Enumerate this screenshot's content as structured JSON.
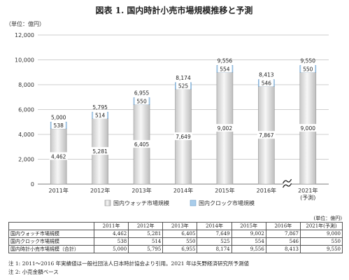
{
  "chart_data": {
    "type": "bar",
    "title": "図表 1. 国内時計小売市場規模推移と予測",
    "unit_label": "（単位：億円）",
    "categories": [
      "2011年",
      "2012年",
      "2013年",
      "2014年",
      "2015年",
      "2016年",
      "2021年\n(予測)"
    ],
    "series": [
      {
        "name": "国内ウォッチ市場規模",
        "values": [
          4462,
          5281,
          6405,
          7649,
          9002,
          7867,
          9000
        ],
        "color": "#e0e0e0"
      },
      {
        "name": "国内クロック市場規模",
        "values": [
          538,
          514,
          550,
          525,
          554,
          546,
          550
        ],
        "color": "#a9cdeb"
      }
    ],
    "totals": [
      5000,
      5795,
      6955,
      8174,
      9556,
      8413,
      9550
    ],
    "yticks": [
      "0",
      "2,000",
      "4,000",
      "6,000",
      "8,000",
      "10,000",
      "12,000"
    ],
    "ylim": [
      0,
      12000
    ],
    "stacked": true,
    "axis_break_before_last": true,
    "legend_placement": "bottom"
  },
  "table": {
    "unit": "(単位：億円)",
    "headers": [
      "",
      "2011年",
      "2012年",
      "2013年",
      "2014年",
      "2015年",
      "2016年",
      "2021年(予測)"
    ],
    "rows": [
      {
        "label": "国内ウォッチ市場規模",
        "values": [
          "4,462",
          "5,281",
          "6,405",
          "7,649",
          "9,002",
          "7,867",
          "9,000"
        ]
      },
      {
        "label": "国内クロック市場規模",
        "values": [
          "538",
          "514",
          "550",
          "525",
          "554",
          "546",
          "550"
        ]
      },
      {
        "label": "国内時計小売市場規模（合計）",
        "values": [
          "5,000",
          "5,795",
          "6,955",
          "8,174",
          "9,556",
          "8,413",
          "9,550"
        ]
      }
    ]
  },
  "notes": [
    "注 1: 2011～2016 年実績値は一般社団法人日本時計協会より引用。2021 年は矢野経済研究所予測値",
    "注 2: 小売金額ベース"
  ]
}
